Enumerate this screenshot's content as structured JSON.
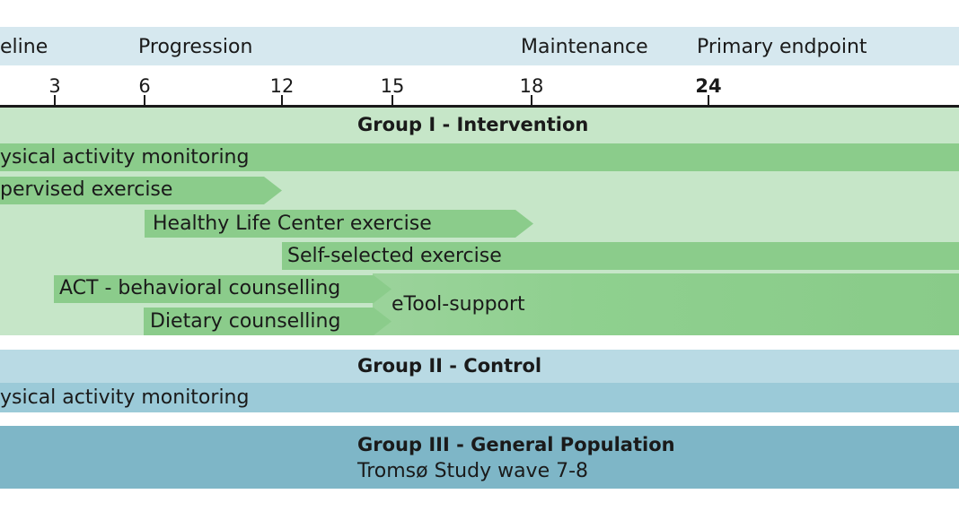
{
  "phases": [
    {
      "label": "eline"
    },
    {
      "label": "Progression"
    },
    {
      "label": "Maintenance"
    },
    {
      "label": "Primary endpoint"
    }
  ],
  "axis": {
    "ticks": [
      {
        "label": "3",
        "bold": false
      },
      {
        "label": "6",
        "bold": false
      },
      {
        "label": "12",
        "bold": false
      },
      {
        "label": "15",
        "bold": false
      },
      {
        "label": "18",
        "bold": false
      },
      {
        "label": "24",
        "bold": true
      }
    ]
  },
  "group1": {
    "title": "Group I - Intervention",
    "bars": [
      {
        "label": "ysical activity monitoring"
      },
      {
        "label": "pervised exercise"
      },
      {
        "label": "Healthy Life Center exercise"
      },
      {
        "label": "Self-selected exercise"
      },
      {
        "label": "ACT - behavioral counselling"
      },
      {
        "label": "Dietary counselling"
      },
      {
        "label": "eTool-support"
      }
    ]
  },
  "group2": {
    "title": "Group II - Control",
    "bar_label": "ysical activity monitoring"
  },
  "group3": {
    "title": "Group III - General Population",
    "subtitle": "Tromsø Study wave 7-8"
  }
}
